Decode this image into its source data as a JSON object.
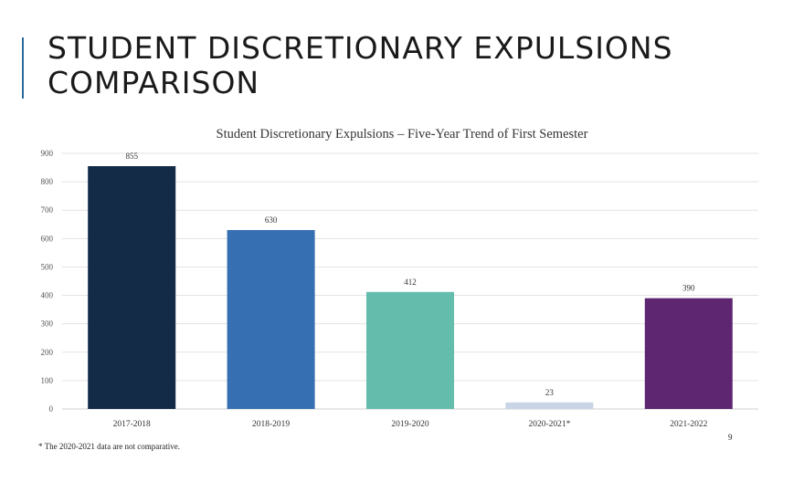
{
  "slide": {
    "title_line1": "STUDENT DISCRETIONARY EXPULSIONS",
    "title_line2": "COMPARISON",
    "footnote": "* The 2020-2021 data are not comparative.",
    "page_number": "9"
  },
  "chart_data": {
    "type": "bar",
    "title": "Student Discretionary Expulsions – Five-Year Trend of First Semester",
    "categories": [
      "2017-2018",
      "2018-2019",
      "2019-2020",
      "2020-2021*",
      "2021-2022"
    ],
    "values": [
      855,
      630,
      412,
      23,
      390
    ],
    "colors": [
      "#142b47",
      "#3670b2",
      "#64bdac",
      "#c9d4e6",
      "#5e2570"
    ],
    "data_labels": [
      "855",
      "630",
      "412",
      "23",
      "390"
    ],
    "ylim": [
      0,
      900
    ],
    "yticks": [
      0,
      100,
      200,
      300,
      400,
      500,
      600,
      700,
      800,
      900
    ],
    "xlabel": "",
    "ylabel": "",
    "grid": true,
    "legend": "none",
    "gridline_color": "#e3e3e3",
    "axis_color": "#cfcfcf",
    "tick_text_color": "#555555",
    "label_text_color": "#333333"
  }
}
